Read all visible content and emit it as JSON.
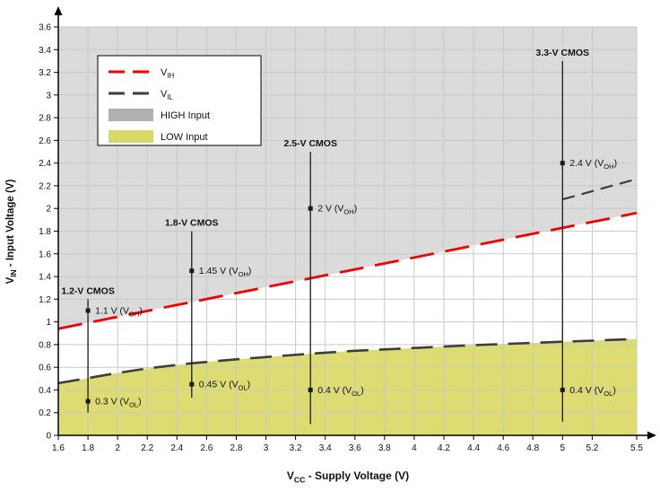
{
  "chart_data": {
    "type": "line",
    "title": "",
    "xlabel": "V_{CC} - Supply Voltage (V)",
    "ylabel": "V_{IN} - Input Voltage (V)",
    "xlim": [
      1.6,
      5.5
    ],
    "ylim": [
      0,
      3.6
    ],
    "grid": true,
    "x_tick_labels": [
      "1.6",
      "1.8",
      "2",
      "2.2",
      "2.4",
      "2.6",
      "2.8",
      "3",
      "3.2",
      "3.4",
      "3.6",
      "3.8",
      "4",
      "4.2",
      "4.4",
      "4.6",
      "4.8",
      "5",
      "5.2",
      "5.5"
    ],
    "y_tick_labels": [
      "0",
      "0.2",
      "0.4",
      "0.6",
      "0.8",
      "1",
      "1.2",
      "1.4",
      "1.6",
      "1.8",
      "2",
      "2.2",
      "2.4",
      "2.6",
      "2.8",
      "3",
      "3.2",
      "3.4",
      "3.6"
    ],
    "colors": {
      "axis": "#000000",
      "grid": "#c9c9c9",
      "text": "#111111",
      "device_line": "#1a1a1a"
    },
    "series": [
      {
        "id": "vil",
        "name": "V_{IL}",
        "color": "#3d3d3d",
        "dash": "24 12",
        "width": 2.6,
        "points": [
          [
            1.6,
            0.46
          ],
          [
            1.8,
            0.505
          ],
          [
            2.0,
            0.55
          ],
          [
            2.2,
            0.59
          ],
          [
            2.5,
            0.635
          ],
          [
            2.8,
            0.67
          ],
          [
            3.0,
            0.69
          ],
          [
            3.3,
            0.72
          ],
          [
            3.6,
            0.745
          ],
          [
            4.0,
            0.77
          ],
          [
            4.4,
            0.795
          ],
          [
            4.8,
            0.815
          ],
          [
            5.0,
            0.825
          ],
          [
            5.2,
            0.835
          ],
          [
            5.5,
            0.85
          ]
        ]
      },
      {
        "id": "vih",
        "name": "V_{IH}",
        "color": "#f40000",
        "dash": "27 13",
        "width": 2.8,
        "points": [
          [
            1.6,
            0.94
          ],
          [
            5.5,
            1.96
          ]
        ]
      }
    ],
    "regions": [
      {
        "id": "high",
        "label": "HIGH Input",
        "boundary": "vih",
        "side": "above",
        "color": "#dbdbdb"
      },
      {
        "id": "low",
        "label": "LOW Input",
        "boundary": "vil",
        "side": "below",
        "color": "#dcdc73"
      }
    ],
    "extra_segment": {
      "points": [
        [
          5.0,
          2.08
        ],
        [
          5.5,
          2.26
        ]
      ],
      "color": "#3d3d3d",
      "dash": "14 8",
      "width": 2.2
    },
    "devices": [
      {
        "label": "1.2-V CMOS",
        "x": 1.8,
        "line": [
          0.2,
          1.2
        ],
        "points": [
          {
            "y": 1.1,
            "label": "1.1 V (V_{OH})"
          },
          {
            "y": 0.3,
            "label": "0.3 V (V_{OL})"
          }
        ]
      },
      {
        "label": "1.8-V CMOS",
        "x": 2.5,
        "line": [
          0.33,
          1.8
        ],
        "points": [
          {
            "y": 1.45,
            "label": "1.45 V (V_{OH})"
          },
          {
            "y": 0.45,
            "label": "0.45 V (V_{OL})"
          }
        ]
      },
      {
        "label": "2.5-V CMOS",
        "x": 3.3,
        "line": [
          0.1,
          2.5
        ],
        "points": [
          {
            "y": 2.0,
            "label": "2 V (V_{OH})"
          },
          {
            "y": 0.4,
            "label": "0.4 V (V_{OL})"
          }
        ]
      },
      {
        "label": "3.3-V CMOS",
        "x": 5.0,
        "line": [
          0.12,
          3.3
        ],
        "points": [
          {
            "y": 2.4,
            "label": "2.4 V (V_{OH})"
          },
          {
            "y": 0.4,
            "label": "0.4 V (V_{OL})"
          }
        ]
      }
    ],
    "legend": {
      "position": "top-left",
      "items": [
        {
          "label": "V_{IH}",
          "swatch": "dashed-line",
          "color": "#f40000"
        },
        {
          "label": "V_{IL}",
          "swatch": "dashed-line",
          "color": "#3d3d3d"
        },
        {
          "label": "HIGH Input",
          "swatch": "fill",
          "color": "#b0b0b0"
        },
        {
          "label": "LOW Input",
          "swatch": "fill",
          "color": "#d9d96a"
        }
      ]
    }
  }
}
